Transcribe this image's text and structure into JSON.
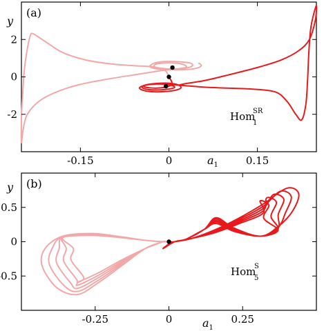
{
  "chart_data": [
    {
      "type": "line",
      "panel_label": "(a)",
      "xlabel": "a",
      "xlabel_sub": "1",
      "ylabel": "y",
      "xlim": [
        -0.25,
        0.25
      ],
      "ylim": [
        -4,
        4
      ],
      "xticks": [
        {
          "v": -0.15,
          "label": "-0.15"
        },
        {
          "v": 0,
          "label": "0"
        },
        {
          "v": 0.15,
          "label": "0.15"
        }
      ],
      "yticks": [
        {
          "v": 2,
          "label": "2"
        },
        {
          "v": 0,
          "label": "0"
        },
        {
          "v": -2,
          "label": "-2"
        }
      ],
      "annotation": {
        "base": "Hom",
        "sup": "SR",
        "sub": "1"
      },
      "colors": {
        "light": "#f2a8a8",
        "dark": "#e8191c"
      },
      "series": [
        {
          "style": "light",
          "points": [
            [
              0.0,
              0.0
            ],
            [
              -0.005,
              0.3
            ],
            [
              -0.015,
              0.45
            ],
            [
              -0.03,
              0.55
            ],
            [
              -0.06,
              0.6
            ],
            [
              -0.1,
              0.7
            ],
            [
              -0.14,
              0.9
            ],
            [
              -0.18,
              1.3
            ],
            [
              -0.21,
              1.9
            ],
            [
              -0.23,
              2.3
            ],
            [
              -0.235,
              2.2
            ],
            [
              -0.24,
              1.5
            ],
            [
              -0.245,
              0.4
            ],
            [
              -0.248,
              -1.0
            ],
            [
              -0.25,
              -2.2
            ],
            [
              -0.25,
              -3.5
            ],
            [
              -0.247,
              -2.8
            ],
            [
              -0.24,
              -2.0
            ],
            [
              -0.22,
              -1.3
            ],
            [
              -0.19,
              -0.8
            ],
            [
              -0.15,
              -0.4
            ],
            [
              -0.1,
              -0.1
            ],
            [
              -0.05,
              0.15
            ],
            [
              -0.01,
              0.35
            ],
            [
              0.02,
              0.45
            ],
            [
              0.03,
              0.55
            ],
            [
              0.02,
              0.7
            ],
            [
              0.0,
              0.75
            ],
            [
              -0.02,
              0.7
            ],
            [
              -0.025,
              0.55
            ],
            [
              -0.01,
              0.45
            ],
            [
              0.01,
              0.42
            ],
            [
              0.03,
              0.48
            ],
            [
              0.04,
              0.6
            ],
            [
              0.035,
              0.75
            ],
            [
              0.01,
              0.82
            ],
            [
              -0.015,
              0.8
            ],
            [
              -0.03,
              0.65
            ],
            [
              -0.03,
              0.5
            ],
            [
              -0.01,
              0.4
            ],
            [
              0.02,
              0.38
            ],
            [
              0.045,
              0.45
            ],
            [
              0.055,
              0.6
            ],
            [
              0.05,
              0.75
            ]
          ]
        },
        {
          "style": "dark",
          "points": [
            [
              0.0,
              0.0
            ],
            [
              0.005,
              -0.3
            ],
            [
              0.0,
              -0.5
            ],
            [
              -0.02,
              -0.6
            ],
            [
              -0.04,
              -0.55
            ],
            [
              -0.04,
              -0.45
            ],
            [
              -0.02,
              -0.38
            ],
            [
              0.0,
              -0.42
            ],
            [
              0.01,
              -0.55
            ],
            [
              0.0,
              -0.65
            ],
            [
              -0.02,
              -0.7
            ],
            [
              -0.04,
              -0.65
            ],
            [
              -0.045,
              -0.5
            ],
            [
              -0.03,
              -0.38
            ],
            [
              -0.005,
              -0.33
            ],
            [
              0.015,
              -0.42
            ],
            [
              0.02,
              -0.6
            ],
            [
              0.005,
              -0.75
            ],
            [
              -0.02,
              -0.8
            ],
            [
              -0.04,
              -0.75
            ],
            [
              -0.05,
              -0.6
            ],
            [
              -0.04,
              -0.45
            ],
            [
              -0.015,
              -0.38
            ],
            [
              0.02,
              -0.45
            ],
            [
              0.06,
              -0.55
            ],
            [
              0.1,
              -0.6
            ],
            [
              0.14,
              -0.65
            ],
            [
              0.18,
              -0.8
            ],
            [
              0.2,
              -1.3
            ],
            [
              0.215,
              -2.0
            ],
            [
              0.225,
              -2.3
            ],
            [
              0.232,
              -1.5
            ],
            [
              0.235,
              -0.2
            ],
            [
              0.237,
              1.2
            ],
            [
              0.24,
              2.5
            ],
            [
              0.245,
              3.3
            ],
            [
              0.25,
              3.8
            ],
            [
              0.248,
              3.0
            ],
            [
              0.238,
              2.0
            ],
            [
              0.22,
              1.4
            ],
            [
              0.19,
              0.9
            ],
            [
              0.15,
              0.5
            ],
            [
              0.1,
              0.1
            ],
            [
              0.06,
              -0.2
            ],
            [
              0.03,
              -0.35
            ],
            [
              0.015,
              -0.45
            ]
          ]
        }
      ],
      "points": [
        [
          0.0,
          0.0
        ],
        [
          0.006,
          0.5
        ],
        [
          -0.005,
          -0.5
        ]
      ]
    },
    {
      "type": "line",
      "panel_label": "(b)",
      "xlabel": "a",
      "xlabel_sub": "1",
      "ylabel": "y",
      "xlim": [
        -0.5,
        0.5
      ],
      "ylim": [
        -1.0,
        1.0
      ],
      "xticks": [
        {
          "v": -0.25,
          "label": "-0.25"
        },
        {
          "v": 0,
          "label": "0"
        },
        {
          "v": 0.25,
          "label": "0.25"
        }
      ],
      "yticks": [
        {
          "v": 0.5,
          "label": "0.5"
        },
        {
          "v": 0,
          "label": "0"
        },
        {
          "v": -0.5,
          "label": "-0.5"
        }
      ],
      "annotation": {
        "base": "Hom",
        "sup": "S",
        "sub": "5"
      },
      "colors": {
        "light": "#f2a8a8",
        "dark": "#e8191c"
      },
      "series": [
        {
          "style": "light",
          "loops": 5,
          "center": [
            -0.25,
            -0.3
          ],
          "points_note": ""
        },
        {
          "style": "dark",
          "loops": 5
        }
      ],
      "points": [
        [
          0.0,
          0.0
        ]
      ]
    }
  ]
}
